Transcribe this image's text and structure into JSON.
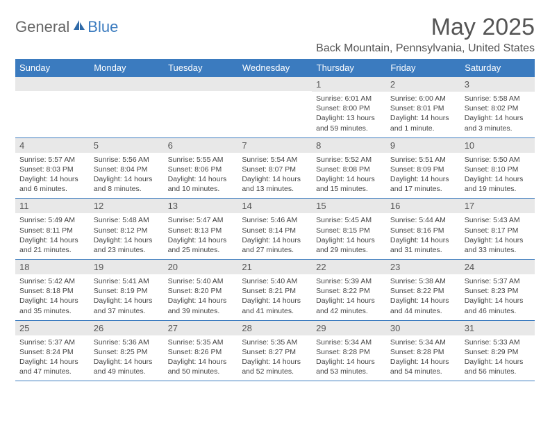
{
  "logo": {
    "part1": "General",
    "part2": "Blue"
  },
  "header": {
    "month": "May 2025",
    "location": "Back Mountain, Pennsylvania, United States"
  },
  "colors": {
    "header_bg": "#3b7bbf",
    "header_text": "#ffffff",
    "date_bg": "#e8e8e8",
    "border": "#3b7bbf",
    "body_text": "#444444"
  },
  "day_headers": [
    "Sunday",
    "Monday",
    "Tuesday",
    "Wednesday",
    "Thursday",
    "Friday",
    "Saturday"
  ],
  "weeks": [
    [
      {
        "date": "",
        "sunrise": "",
        "sunset": "",
        "daylight": ""
      },
      {
        "date": "",
        "sunrise": "",
        "sunset": "",
        "daylight": ""
      },
      {
        "date": "",
        "sunrise": "",
        "sunset": "",
        "daylight": ""
      },
      {
        "date": "",
        "sunrise": "",
        "sunset": "",
        "daylight": ""
      },
      {
        "date": "1",
        "sunrise": "Sunrise: 6:01 AM",
        "sunset": "Sunset: 8:00 PM",
        "daylight": "Daylight: 13 hours and 59 minutes."
      },
      {
        "date": "2",
        "sunrise": "Sunrise: 6:00 AM",
        "sunset": "Sunset: 8:01 PM",
        "daylight": "Daylight: 14 hours and 1 minute."
      },
      {
        "date": "3",
        "sunrise": "Sunrise: 5:58 AM",
        "sunset": "Sunset: 8:02 PM",
        "daylight": "Daylight: 14 hours and 3 minutes."
      }
    ],
    [
      {
        "date": "4",
        "sunrise": "Sunrise: 5:57 AM",
        "sunset": "Sunset: 8:03 PM",
        "daylight": "Daylight: 14 hours and 6 minutes."
      },
      {
        "date": "5",
        "sunrise": "Sunrise: 5:56 AM",
        "sunset": "Sunset: 8:04 PM",
        "daylight": "Daylight: 14 hours and 8 minutes."
      },
      {
        "date": "6",
        "sunrise": "Sunrise: 5:55 AM",
        "sunset": "Sunset: 8:06 PM",
        "daylight": "Daylight: 14 hours and 10 minutes."
      },
      {
        "date": "7",
        "sunrise": "Sunrise: 5:54 AM",
        "sunset": "Sunset: 8:07 PM",
        "daylight": "Daylight: 14 hours and 13 minutes."
      },
      {
        "date": "8",
        "sunrise": "Sunrise: 5:52 AM",
        "sunset": "Sunset: 8:08 PM",
        "daylight": "Daylight: 14 hours and 15 minutes."
      },
      {
        "date": "9",
        "sunrise": "Sunrise: 5:51 AM",
        "sunset": "Sunset: 8:09 PM",
        "daylight": "Daylight: 14 hours and 17 minutes."
      },
      {
        "date": "10",
        "sunrise": "Sunrise: 5:50 AM",
        "sunset": "Sunset: 8:10 PM",
        "daylight": "Daylight: 14 hours and 19 minutes."
      }
    ],
    [
      {
        "date": "11",
        "sunrise": "Sunrise: 5:49 AM",
        "sunset": "Sunset: 8:11 PM",
        "daylight": "Daylight: 14 hours and 21 minutes."
      },
      {
        "date": "12",
        "sunrise": "Sunrise: 5:48 AM",
        "sunset": "Sunset: 8:12 PM",
        "daylight": "Daylight: 14 hours and 23 minutes."
      },
      {
        "date": "13",
        "sunrise": "Sunrise: 5:47 AM",
        "sunset": "Sunset: 8:13 PM",
        "daylight": "Daylight: 14 hours and 25 minutes."
      },
      {
        "date": "14",
        "sunrise": "Sunrise: 5:46 AM",
        "sunset": "Sunset: 8:14 PM",
        "daylight": "Daylight: 14 hours and 27 minutes."
      },
      {
        "date": "15",
        "sunrise": "Sunrise: 5:45 AM",
        "sunset": "Sunset: 8:15 PM",
        "daylight": "Daylight: 14 hours and 29 minutes."
      },
      {
        "date": "16",
        "sunrise": "Sunrise: 5:44 AM",
        "sunset": "Sunset: 8:16 PM",
        "daylight": "Daylight: 14 hours and 31 minutes."
      },
      {
        "date": "17",
        "sunrise": "Sunrise: 5:43 AM",
        "sunset": "Sunset: 8:17 PM",
        "daylight": "Daylight: 14 hours and 33 minutes."
      }
    ],
    [
      {
        "date": "18",
        "sunrise": "Sunrise: 5:42 AM",
        "sunset": "Sunset: 8:18 PM",
        "daylight": "Daylight: 14 hours and 35 minutes."
      },
      {
        "date": "19",
        "sunrise": "Sunrise: 5:41 AM",
        "sunset": "Sunset: 8:19 PM",
        "daylight": "Daylight: 14 hours and 37 minutes."
      },
      {
        "date": "20",
        "sunrise": "Sunrise: 5:40 AM",
        "sunset": "Sunset: 8:20 PM",
        "daylight": "Daylight: 14 hours and 39 minutes."
      },
      {
        "date": "21",
        "sunrise": "Sunrise: 5:40 AM",
        "sunset": "Sunset: 8:21 PM",
        "daylight": "Daylight: 14 hours and 41 minutes."
      },
      {
        "date": "22",
        "sunrise": "Sunrise: 5:39 AM",
        "sunset": "Sunset: 8:22 PM",
        "daylight": "Daylight: 14 hours and 42 minutes."
      },
      {
        "date": "23",
        "sunrise": "Sunrise: 5:38 AM",
        "sunset": "Sunset: 8:22 PM",
        "daylight": "Daylight: 14 hours and 44 minutes."
      },
      {
        "date": "24",
        "sunrise": "Sunrise: 5:37 AM",
        "sunset": "Sunset: 8:23 PM",
        "daylight": "Daylight: 14 hours and 46 minutes."
      }
    ],
    [
      {
        "date": "25",
        "sunrise": "Sunrise: 5:37 AM",
        "sunset": "Sunset: 8:24 PM",
        "daylight": "Daylight: 14 hours and 47 minutes."
      },
      {
        "date": "26",
        "sunrise": "Sunrise: 5:36 AM",
        "sunset": "Sunset: 8:25 PM",
        "daylight": "Daylight: 14 hours and 49 minutes."
      },
      {
        "date": "27",
        "sunrise": "Sunrise: 5:35 AM",
        "sunset": "Sunset: 8:26 PM",
        "daylight": "Daylight: 14 hours and 50 minutes."
      },
      {
        "date": "28",
        "sunrise": "Sunrise: 5:35 AM",
        "sunset": "Sunset: 8:27 PM",
        "daylight": "Daylight: 14 hours and 52 minutes."
      },
      {
        "date": "29",
        "sunrise": "Sunrise: 5:34 AM",
        "sunset": "Sunset: 8:28 PM",
        "daylight": "Daylight: 14 hours and 53 minutes."
      },
      {
        "date": "30",
        "sunrise": "Sunrise: 5:34 AM",
        "sunset": "Sunset: 8:28 PM",
        "daylight": "Daylight: 14 hours and 54 minutes."
      },
      {
        "date": "31",
        "sunrise": "Sunrise: 5:33 AM",
        "sunset": "Sunset: 8:29 PM",
        "daylight": "Daylight: 14 hours and 56 minutes."
      }
    ]
  ]
}
